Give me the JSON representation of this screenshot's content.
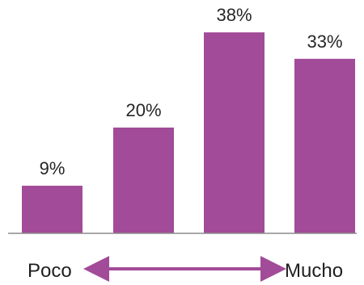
{
  "chart_data": {
    "type": "bar",
    "categories": [
      "",
      "",
      "",
      ""
    ],
    "values": [
      9,
      20,
      38,
      33
    ],
    "data_labels": [
      "9%",
      "20%",
      "38%",
      "33%"
    ],
    "title": "",
    "xlabel": "",
    "ylabel": "",
    "ylim": [
      0,
      40
    ],
    "grid": false,
    "legend": "none",
    "x_axis_scale_labels": {
      "left": "Poco",
      "right": "Mucho"
    },
    "colors": {
      "bar": "#A24B98",
      "arrow": "#A24B98",
      "baseline": "#8C8C8C"
    }
  }
}
